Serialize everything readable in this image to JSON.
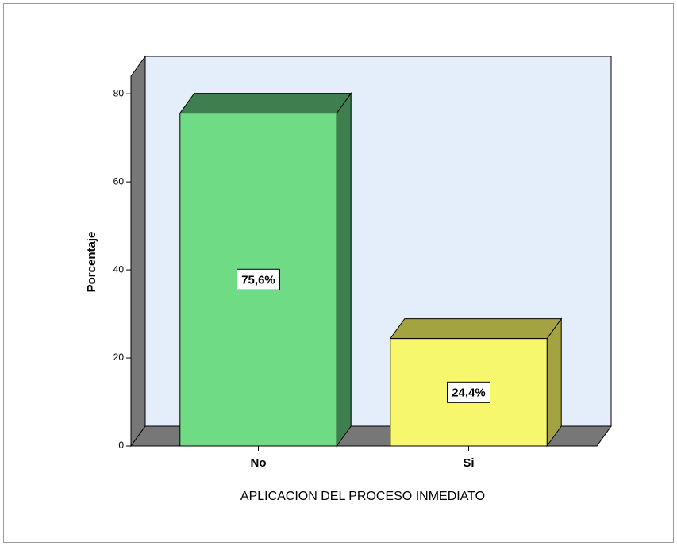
{
  "chart_data": {
    "type": "bar3d",
    "categories": [
      "No",
      "Si"
    ],
    "values": [
      75.6,
      24.4
    ],
    "value_labels": [
      "75,6%",
      "24,4%"
    ],
    "colors": [
      "#6fdc85",
      "#f7f76e"
    ],
    "side_colors": [
      "#3f7f4f",
      "#a3a342"
    ],
    "x_label": "APLICACION DEL PROCESO INMEDIATO",
    "y_label": "Porcentaje",
    "ylim": [
      0,
      84
    ],
    "yticks": [
      0,
      20,
      40,
      60,
      80
    ]
  }
}
